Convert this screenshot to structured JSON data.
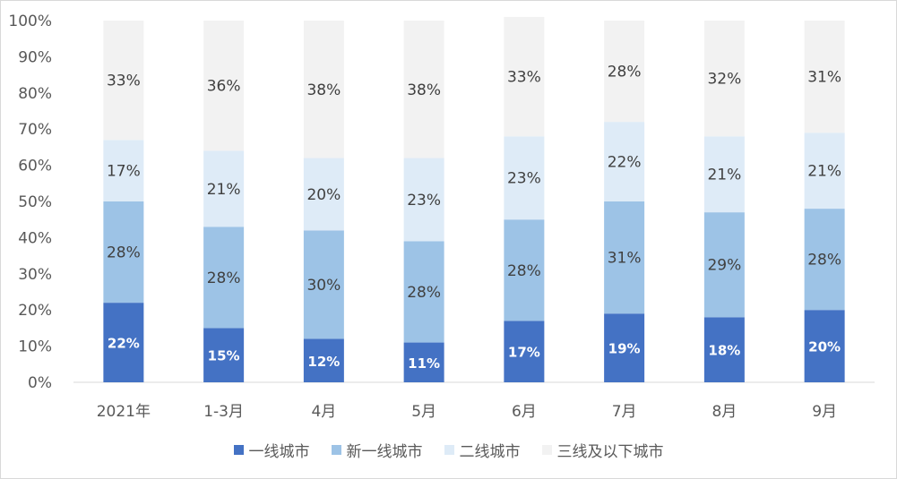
{
  "chart_data": {
    "type": "bar",
    "stacked": true,
    "percent": true,
    "categories": [
      "2021年",
      "1-3月",
      "4月",
      "5月",
      "6月",
      "7月",
      "8月",
      "9月"
    ],
    "series": [
      {
        "name": "一线城市",
        "color": "#4472c4",
        "values": [
          22,
          15,
          12,
          11,
          17,
          19,
          18,
          20
        ]
      },
      {
        "name": "新一线城市",
        "color": "#9dc3e6",
        "values": [
          28,
          28,
          30,
          28,
          28,
          31,
          29,
          28
        ]
      },
      {
        "name": "二线城市",
        "color": "#deebf7",
        "values": [
          17,
          21,
          20,
          23,
          23,
          22,
          21,
          21
        ]
      },
      {
        "name": "三线及以下城市",
        "color": "#f2f2f2",
        "values": [
          33,
          36,
          38,
          38,
          33,
          28,
          32,
          31
        ]
      }
    ],
    "ylim": [
      0,
      100
    ],
    "yticks": [
      "0%",
      "10%",
      "20%",
      "30%",
      "40%",
      "50%",
      "60%",
      "70%",
      "80%",
      "90%",
      "100%"
    ],
    "legend_position": "bottom",
    "grid": false
  }
}
